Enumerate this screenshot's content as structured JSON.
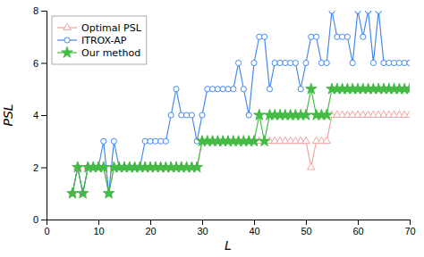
{
  "chart_data": {
    "type": "line",
    "xlabel": "L",
    "ylabel": "PSL",
    "x": [
      5,
      6,
      7,
      8,
      9,
      10,
      11,
      12,
      13,
      14,
      15,
      16,
      17,
      18,
      19,
      20,
      21,
      22,
      23,
      24,
      25,
      26,
      27,
      28,
      29,
      30,
      31,
      32,
      33,
      34,
      35,
      36,
      37,
      38,
      39,
      40,
      41,
      42,
      43,
      44,
      45,
      46,
      47,
      48,
      49,
      50,
      51,
      52,
      53,
      54,
      55,
      56,
      57,
      58,
      59,
      60,
      61,
      62,
      63,
      64,
      65,
      66,
      67,
      68,
      69,
      70
    ],
    "series": [
      {
        "name": "Optimal PSL",
        "color": "#f4a0a0",
        "marker": "triangle-open",
        "values": [
          1,
          2,
          1,
          2,
          2,
          2,
          2,
          1,
          2,
          2,
          2,
          2,
          2,
          2,
          2,
          2,
          2,
          2,
          2,
          2,
          2,
          2,
          2,
          2,
          2,
          3,
          3,
          3,
          3,
          3,
          3,
          3,
          3,
          3,
          3,
          3,
          3,
          3,
          3,
          3,
          3,
          3,
          3,
          3,
          3,
          3,
          2,
          3,
          3,
          3,
          4,
          4,
          4,
          4,
          4,
          4,
          4,
          4,
          4,
          4,
          4,
          4,
          4,
          4,
          4,
          4
        ]
      },
      {
        "name": "ITROX-AP",
        "color": "#4488ee",
        "marker": "circle-open",
        "values": [
          1,
          2,
          1,
          2,
          2,
          2,
          3,
          1,
          3,
          2,
          2,
          2,
          2,
          2,
          3,
          3,
          3,
          3,
          3,
          4,
          5,
          4,
          4,
          4,
          3,
          4,
          5,
          5,
          5,
          5,
          5,
          5,
          6,
          5,
          4,
          6,
          7,
          7,
          5,
          6,
          6,
          6,
          6,
          6,
          5,
          6,
          7,
          7,
          6,
          6,
          8,
          7,
          7,
          7,
          6,
          8,
          7,
          8,
          6,
          8,
          6,
          6,
          6,
          6,
          6,
          6
        ]
      },
      {
        "name": "Our method",
        "color": "#44bb44",
        "marker": "star",
        "values": [
          1,
          2,
          1,
          2,
          2,
          2,
          2,
          1,
          2,
          2,
          2,
          2,
          2,
          2,
          2,
          2,
          2,
          2,
          2,
          2,
          2,
          2,
          2,
          2,
          2,
          3,
          3,
          3,
          3,
          3,
          3,
          3,
          3,
          3,
          3,
          3,
          4,
          3,
          4,
          4,
          4,
          4,
          4,
          4,
          4,
          4,
          5,
          4,
          4,
          4,
          5,
          5,
          5,
          5,
          5,
          5,
          5,
          5,
          5,
          5,
          5,
          5,
          5,
          5,
          5,
          5
        ]
      }
    ],
    "xlim": [
      0,
      70
    ],
    "ylim": [
      0,
      8
    ],
    "xticks": [
      0,
      10,
      20,
      30,
      40,
      50,
      60,
      70
    ],
    "yticks": [
      0,
      2,
      4,
      6,
      8
    ],
    "legend": "top-left",
    "grid": false
  }
}
